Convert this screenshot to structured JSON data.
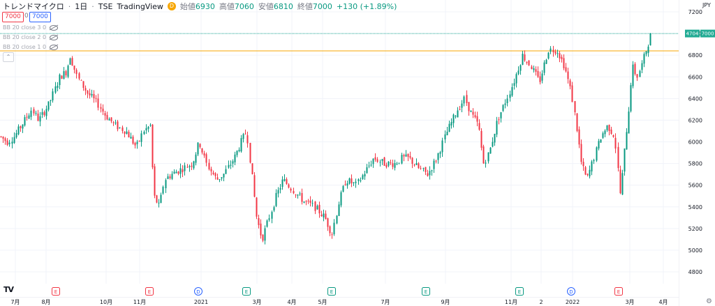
{
  "header": {
    "symbol": "トレンドマイクロ",
    "interval": "1日",
    "exchange": "TSE",
    "source": "TradingView",
    "badge": "D",
    "open_label": "始値",
    "open": "6930",
    "high_label": "高値",
    "high": "7060",
    "low_label": "安値",
    "low": "6810",
    "close_label": "終値",
    "close": "7000",
    "change": "+130 (+1.89%)"
  },
  "quote": {
    "sell": "7000",
    "spread": "0",
    "buy": "7000"
  },
  "indicators": [
    {
      "label": "BB 20 close 3 0"
    },
    {
      "label": "BB 20 close 2 0"
    },
    {
      "label": "BB 20 close 1 0"
    }
  ],
  "currency": "JPY",
  "price_marks": {
    "countdown": "4704",
    "last": "7000"
  },
  "colors": {
    "up": "#089981",
    "down": "#f23645",
    "last_line": "#22ab94",
    "hline": "#f7a600",
    "grid": "#f0f3fa"
  },
  "chart_data": {
    "type": "candlestick",
    "ylim": [
      4800,
      7200
    ],
    "y_ticks": [
      4800,
      5000,
      5200,
      5400,
      5600,
      5800,
      6000,
      6200,
      6400,
      6600,
      6800,
      7000,
      7200
    ],
    "x_ticks": [
      "7月",
      "8月",
      "10月",
      "11月",
      "2021",
      "3月",
      "4月",
      "5月",
      "7月",
      "9月",
      "11月",
      "2",
      "2022",
      "3月",
      "4月"
    ],
    "last_price": 7000,
    "horizontal_line": 6840,
    "event_markers": [
      "E",
      "E",
      "D",
      "E",
      "E",
      "E",
      "E",
      "D",
      "E"
    ],
    "anchors": [
      [
        0,
        6050
      ],
      [
        10,
        6000
      ],
      [
        20,
        6050
      ],
      [
        35,
        6200
      ],
      [
        45,
        6300
      ],
      [
        55,
        6200
      ],
      [
        70,
        6350
      ],
      [
        85,
        6600
      ],
      [
        95,
        6650
      ],
      [
        100,
        6800
      ],
      [
        110,
        6600
      ],
      [
        125,
        6450
      ],
      [
        140,
        6350
      ],
      [
        150,
        6250
      ],
      [
        165,
        6150
      ],
      [
        180,
        6100
      ],
      [
        195,
        5950
      ],
      [
        205,
        6100
      ],
      [
        215,
        6150
      ],
      [
        220,
        5500
      ],
      [
        228,
        5400
      ],
      [
        235,
        5650
      ],
      [
        245,
        5700
      ],
      [
        260,
        5750
      ],
      [
        275,
        5800
      ],
      [
        285,
        6000
      ],
      [
        295,
        5800
      ],
      [
        310,
        5650
      ],
      [
        320,
        5700
      ],
      [
        335,
        5850
      ],
      [
        345,
        6000
      ],
      [
        353,
        6100
      ],
      [
        360,
        5700
      ],
      [
        367,
        5300
      ],
      [
        375,
        5100
      ],
      [
        385,
        5300
      ],
      [
        395,
        5500
      ],
      [
        405,
        5650
      ],
      [
        420,
        5550
      ],
      [
        435,
        5450
      ],
      [
        450,
        5400
      ],
      [
        465,
        5300
      ],
      [
        475,
        5150
      ],
      [
        485,
        5450
      ],
      [
        495,
        5650
      ],
      [
        510,
        5600
      ],
      [
        520,
        5700
      ],
      [
        535,
        5850
      ],
      [
        550,
        5800
      ],
      [
        565,
        5800
      ],
      [
        575,
        5850
      ],
      [
        585,
        5850
      ],
      [
        600,
        5750
      ],
      [
        612,
        5700
      ],
      [
        625,
        5850
      ],
      [
        640,
        6100
      ],
      [
        655,
        6300
      ],
      [
        665,
        6400
      ],
      [
        675,
        6250
      ],
      [
        685,
        6150
      ],
      [
        692,
        5800
      ],
      [
        700,
        5900
      ],
      [
        712,
        6200
      ],
      [
        722,
        6350
      ],
      [
        735,
        6550
      ],
      [
        748,
        6800
      ],
      [
        760,
        6700
      ],
      [
        772,
        6550
      ],
      [
        785,
        6850
      ],
      [
        797,
        6850
      ],
      [
        808,
        6700
      ],
      [
        818,
        6450
      ],
      [
        825,
        6150
      ],
      [
        832,
        5800
      ],
      [
        840,
        5650
      ],
      [
        850,
        5850
      ],
      [
        860,
        6050
      ],
      [
        870,
        6150
      ],
      [
        880,
        6050
      ],
      [
        888,
        5500
      ],
      [
        895,
        6000
      ],
      [
        900,
        6300
      ],
      [
        905,
        6700
      ],
      [
        912,
        6600
      ],
      [
        918,
        6700
      ],
      [
        925,
        6850
      ],
      [
        932,
        7000
      ]
    ]
  }
}
